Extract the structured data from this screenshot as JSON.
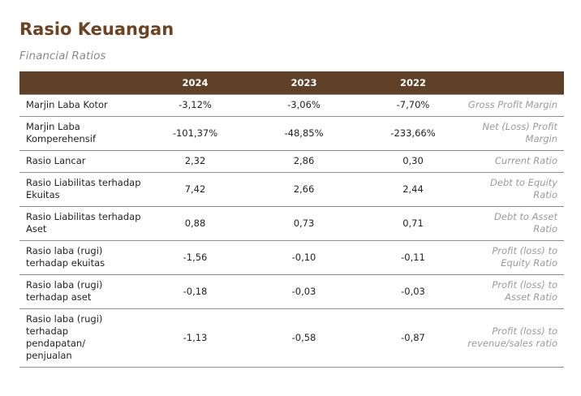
{
  "header": {
    "title": "Rasio Keuangan",
    "subtitle": "Financial Ratios"
  },
  "table": {
    "columns": [
      "",
      "2024",
      "2023",
      "2022",
      ""
    ],
    "rows": [
      {
        "label": "Marjin Laba Kotor",
        "v2024": "-3,12%",
        "v2023": "-3,06%",
        "v2022": "-7,70%",
        "en": "Gross Profit Margin"
      },
      {
        "label": "Marjin Laba Komperehensif",
        "v2024": "-101,37%",
        "v2023": "-48,85%",
        "v2022": "-233,66%",
        "en": "Net (Loss) Profit Margin"
      },
      {
        "label": "Rasio Lancar",
        "v2024": "2,32",
        "v2023": "2,86",
        "v2022": "0,30",
        "en": "Current Ratio"
      },
      {
        "label": "Rasio Liabilitas terhadap Ekuitas",
        "v2024": "7,42",
        "v2023": "2,66",
        "v2022": "2,44",
        "en": "Debt to Equity Ratio"
      },
      {
        "label": "Rasio Liabilitas terhadap Aset",
        "v2024": "0,88",
        "v2023": "0,73",
        "v2022": "0,71",
        "en": "Debt to Asset Ratio"
      },
      {
        "label": "Rasio laba (rugi) terhadap ekuitas",
        "v2024": "-1,56",
        "v2023": "-0,10",
        "v2022": "-0,11",
        "en": "Profit (loss) to Equity Ratio"
      },
      {
        "label": "Rasio laba (rugi) terhadap aset",
        "v2024": "-0,18",
        "v2023": "-0,03",
        "v2022": "-0,03",
        "en": "Profit (loss) to Asset Ratio"
      },
      {
        "label": "Rasio laba (rugi) terhadap pendapatan/ penjualan",
        "v2024": "-1,13",
        "v2023": "-0,58",
        "v2022": "-0,87",
        "en": "Profit (loss) to revenue/sales ratio"
      }
    ]
  },
  "colors": {
    "title": "#6b4426",
    "header_bg": "#5f4029",
    "english_text": "#9a9a9a"
  }
}
